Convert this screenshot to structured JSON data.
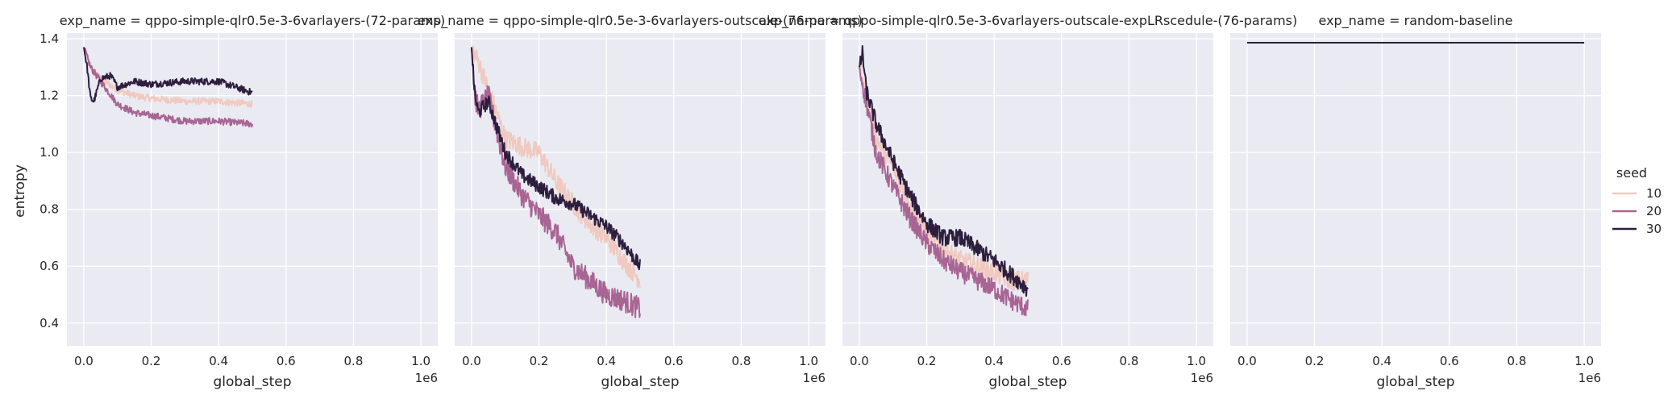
{
  "chart_data": {
    "type": "line",
    "xlabel": "global_step",
    "ylabel": "entropy",
    "x_offset_label": "1e6",
    "xlim": [
      -0.05,
      1.05
    ],
    "ylim": [
      0.32,
      1.42
    ],
    "x_ticks": [
      0.0,
      0.2,
      0.4,
      0.6,
      0.8,
      1.0
    ],
    "x_tick_labels": [
      "0.0",
      "0.2",
      "0.4",
      "0.6",
      "0.8",
      "1.0"
    ],
    "y_ticks": [
      0.4,
      0.6,
      0.8,
      1.0,
      1.2,
      1.4
    ],
    "y_tick_labels": [
      "0.4",
      "0.6",
      "0.8",
      "1.0",
      "1.2",
      "1.4"
    ],
    "grid": true,
    "legend": {
      "title": "seed",
      "placement": "right",
      "entries": [
        {
          "label": "10",
          "color": "#f0c9c0"
        },
        {
          "label": "20",
          "color": "#a86594"
        },
        {
          "label": "30",
          "color": "#2d1e3e"
        }
      ]
    },
    "panels": [
      {
        "title": "exp_name = qppo-simple-qlr0.5e-3-6varlayers-(72-params)",
        "series": [
          {
            "seed": "10",
            "color": "#f0c9c0",
            "noise": 0.012,
            "x": [
              0.0,
              0.02,
              0.05,
              0.1,
              0.15,
              0.2,
              0.3,
              0.4,
              0.5
            ],
            "y": [
              1.37,
              1.3,
              1.26,
              1.22,
              1.2,
              1.19,
              1.18,
              1.18,
              1.17
            ]
          },
          {
            "seed": "20",
            "color": "#a86594",
            "noise": 0.012,
            "x": [
              0.0,
              0.02,
              0.05,
              0.1,
              0.15,
              0.2,
              0.3,
              0.4,
              0.5
            ],
            "y": [
              1.37,
              1.3,
              1.25,
              1.17,
              1.14,
              1.13,
              1.11,
              1.11,
              1.1
            ]
          },
          {
            "seed": "30",
            "color": "#2d1e3e",
            "noise": 0.012,
            "x": [
              0.0,
              0.01,
              0.02,
              0.03,
              0.05,
              0.08,
              0.1,
              0.15,
              0.2,
              0.3,
              0.4,
              0.45,
              0.5
            ],
            "y": [
              1.37,
              1.3,
              1.19,
              1.18,
              1.26,
              1.27,
              1.23,
              1.25,
              1.24,
              1.25,
              1.25,
              1.23,
              1.21
            ]
          }
        ]
      },
      {
        "title": "exp_name = qppo-simple-qlr0.5e-3-6varlayers-outscale-(76-params)",
        "series": [
          {
            "seed": "10",
            "color": "#f0c9c0",
            "noise": 0.035,
            "x": [
              0.0,
              0.02,
              0.05,
              0.1,
              0.15,
              0.2,
              0.25,
              0.3,
              0.35,
              0.4,
              0.45,
              0.5
            ],
            "y": [
              1.37,
              1.32,
              1.22,
              1.05,
              1.02,
              1.0,
              0.9,
              0.82,
              0.75,
              0.7,
              0.62,
              0.55
            ]
          },
          {
            "seed": "20",
            "color": "#a86594",
            "noise": 0.04,
            "x": [
              0.0,
              0.01,
              0.02,
              0.05,
              0.1,
              0.15,
              0.2,
              0.25,
              0.3,
              0.35,
              0.4,
              0.45,
              0.5
            ],
            "y": [
              1.37,
              1.2,
              1.15,
              1.2,
              0.95,
              0.85,
              0.78,
              0.72,
              0.6,
              0.55,
              0.5,
              0.48,
              0.45
            ]
          },
          {
            "seed": "30",
            "color": "#2d1e3e",
            "noise": 0.025,
            "x": [
              0.0,
              0.01,
              0.02,
              0.05,
              0.1,
              0.15,
              0.2,
              0.25,
              0.3,
              0.35,
              0.4,
              0.45,
              0.5
            ],
            "y": [
              1.37,
              1.2,
              1.14,
              1.18,
              1.0,
              0.92,
              0.88,
              0.84,
              0.82,
              0.78,
              0.74,
              0.68,
              0.6
            ]
          }
        ]
      },
      {
        "title": "exp_name = qppo-simple-qlr0.5e-3-6varlayers-outscale-expLRscedule-(76-params)",
        "series": [
          {
            "seed": "10",
            "color": "#f0c9c0",
            "noise": 0.035,
            "x": [
              0.0,
              0.02,
              0.05,
              0.1,
              0.15,
              0.2,
              0.25,
              0.3,
              0.35,
              0.4,
              0.45,
              0.5
            ],
            "y": [
              1.3,
              1.2,
              1.05,
              0.95,
              0.82,
              0.72,
              0.66,
              0.62,
              0.6,
              0.58,
              0.55,
              0.55
            ]
          },
          {
            "seed": "20",
            "color": "#a86594",
            "noise": 0.035,
            "x": [
              0.0,
              0.02,
              0.05,
              0.1,
              0.15,
              0.2,
              0.25,
              0.3,
              0.35,
              0.4,
              0.45,
              0.5
            ],
            "y": [
              1.3,
              1.18,
              1.0,
              0.88,
              0.77,
              0.68,
              0.62,
              0.58,
              0.55,
              0.52,
              0.48,
              0.45
            ]
          },
          {
            "seed": "30",
            "color": "#2d1e3e",
            "noise": 0.03,
            "x": [
              0.0,
              0.01,
              0.02,
              0.05,
              0.1,
              0.15,
              0.2,
              0.25,
              0.3,
              0.35,
              0.4,
              0.45,
              0.5
            ],
            "y": [
              1.3,
              1.35,
              1.22,
              1.1,
              0.97,
              0.85,
              0.75,
              0.7,
              0.7,
              0.66,
              0.62,
              0.57,
              0.52
            ]
          }
        ]
      },
      {
        "title": "exp_name = random-baseline",
        "series": [
          {
            "seed": "30",
            "color": "#2d1e3e",
            "noise": 0,
            "x": [
              0.0,
              1.0
            ],
            "y": [
              1.386,
              1.386
            ]
          }
        ]
      }
    ]
  }
}
